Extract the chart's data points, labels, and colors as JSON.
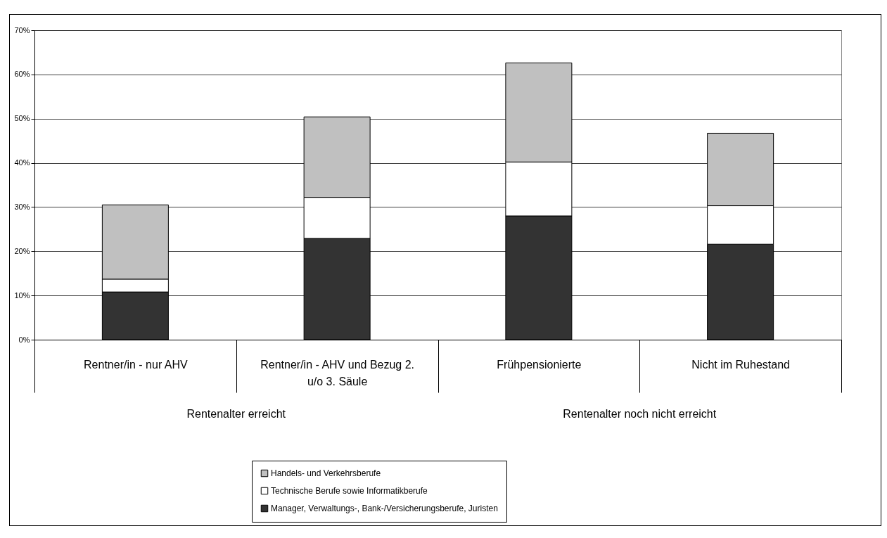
{
  "chart_data": {
    "type": "bar",
    "stacked": true,
    "categories": [
      "Rentner/in - nur AHV",
      "Rentner/in - AHV und Bezug 2. u/o 3. Säule",
      "Frühpensionierte",
      "Nicht im Ruhestand"
    ],
    "series": [
      {
        "name": "Manager, Verwaltungs-, Bank-/Versicherungsberufe, Juristen",
        "color": "#333333",
        "values": [
          10.8,
          22.9,
          28.0,
          21.6
        ]
      },
      {
        "name": "Technische Berufe sowie Informatikberufe",
        "color": "#ffffff",
        "values": [
          2.9,
          9.3,
          12.2,
          8.7
        ]
      },
      {
        "name": "Handels- und Verkehrsberufe",
        "color": "#c0c0c0",
        "values": [
          16.8,
          18.2,
          22.4,
          16.4
        ]
      }
    ],
    "ylim": [
      0,
      70
    ],
    "yticks": [
      {
        "value": 0,
        "label": "0%"
      },
      {
        "value": 10,
        "label": "10%"
      },
      {
        "value": 20,
        "label": "20%"
      },
      {
        "value": 30,
        "label": "30%"
      },
      {
        "value": 40,
        "label": "40%"
      },
      {
        "value": 50,
        "label": "50%"
      },
      {
        "value": 60,
        "label": "60%"
      },
      {
        "value": 70,
        "label": "70%"
      }
    ],
    "grid": "y",
    "legend": "bottom",
    "annotations": [
      "Rentenalter erreicht",
      "Rentenalter noch nicht erreicht"
    ]
  }
}
